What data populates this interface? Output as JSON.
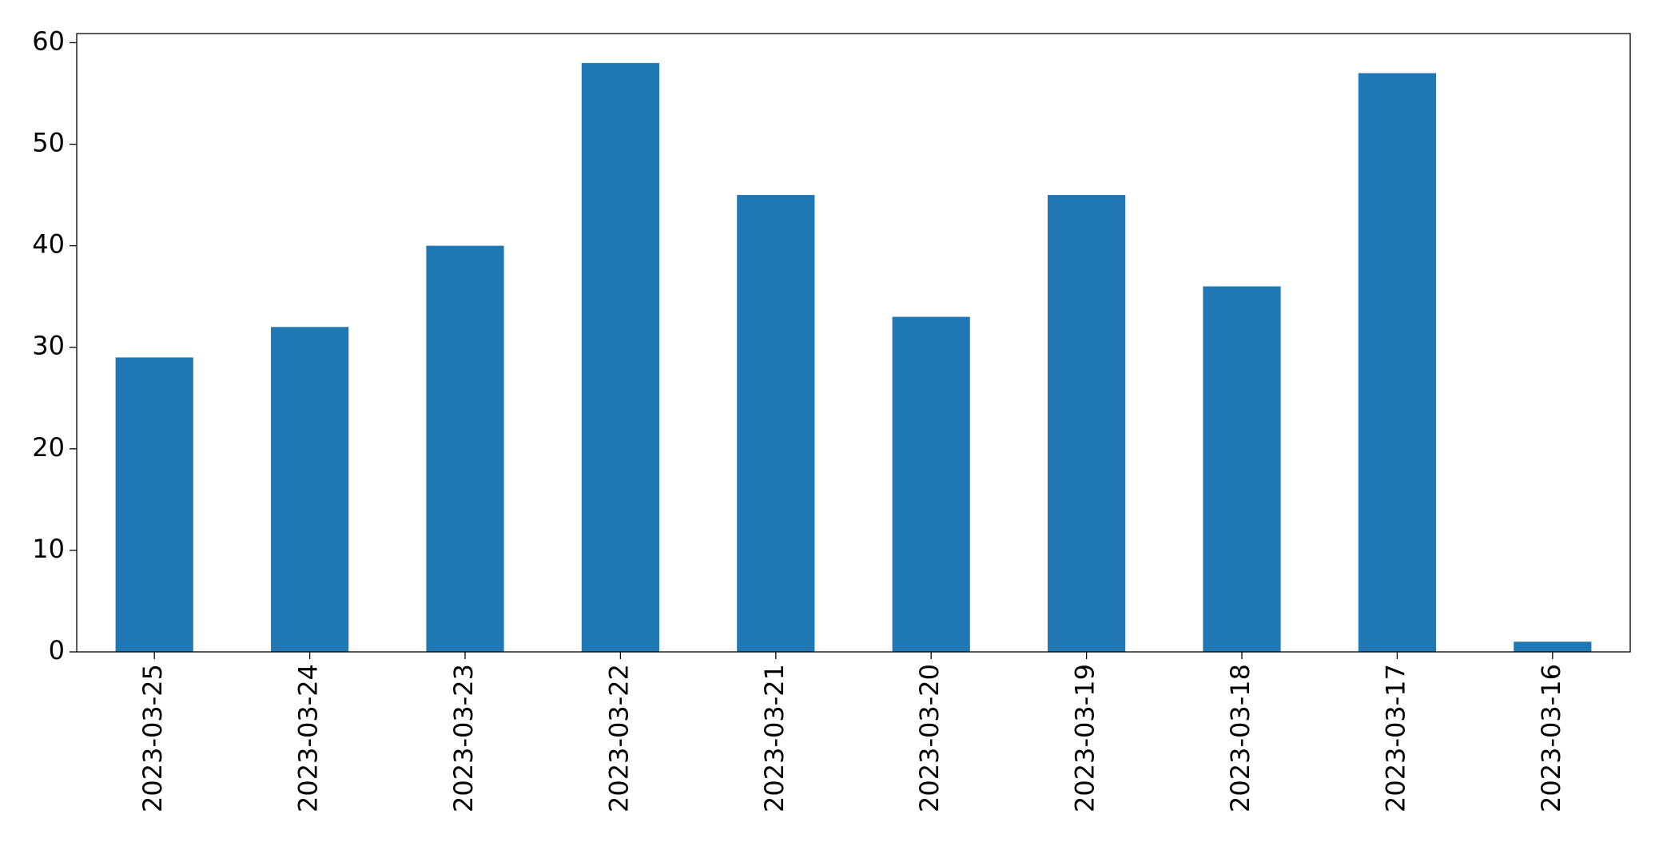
{
  "chart_data": {
    "type": "bar",
    "categories": [
      "2023-03-25",
      "2023-03-24",
      "2023-03-23",
      "2023-03-22",
      "2023-03-21",
      "2023-03-20",
      "2023-03-19",
      "2023-03-18",
      "2023-03-17",
      "2023-03-16"
    ],
    "values": [
      29,
      32,
      40,
      58,
      45,
      33,
      45,
      36,
      57,
      1
    ],
    "color": "#1f77b4",
    "ylim": [
      0,
      60.9
    ],
    "yticks": [
      0,
      10,
      20,
      30,
      40,
      50,
      60
    ],
    "grid": false
  }
}
